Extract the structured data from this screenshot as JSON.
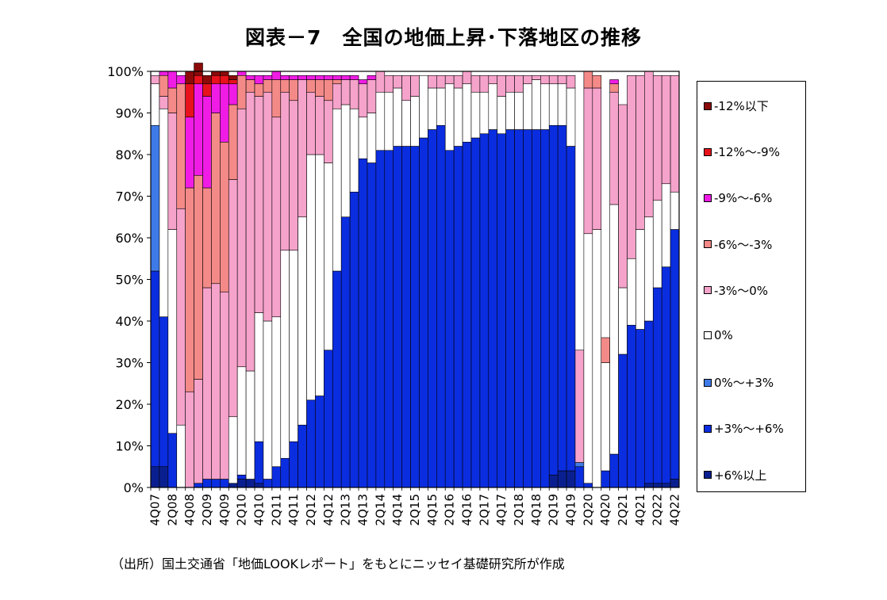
{
  "title": "図表－7　全国の地価上昇･下落地区の推移",
  "source_note": "（出所）国土交通省「地価LOOKレポート」をもとにニッセイ基礎研究所が作成",
  "chart_data": {
    "type": "stacked-bar",
    "y_axis": {
      "min": 0,
      "max": 100,
      "step": 10,
      "unit": "%",
      "tick_labels": [
        "0%",
        "10%",
        "20%",
        "30%",
        "40%",
        "50%",
        "60%",
        "70%",
        "80%",
        "90%",
        "100%"
      ]
    },
    "categories": [
      "4Q07",
      "1Q08",
      "2Q08",
      "3Q08",
      "4Q08",
      "1Q09",
      "2Q09",
      "3Q09",
      "4Q09",
      "1Q10",
      "2Q10",
      "3Q10",
      "4Q10",
      "1Q11",
      "2Q11",
      "3Q11",
      "4Q11",
      "1Q12",
      "2Q12",
      "3Q12",
      "4Q12",
      "1Q13",
      "2Q13",
      "3Q13",
      "4Q13",
      "1Q14",
      "2Q14",
      "3Q14",
      "4Q14",
      "1Q15",
      "2Q15",
      "3Q15",
      "4Q15",
      "1Q16",
      "2Q16",
      "3Q16",
      "4Q16",
      "1Q17",
      "2Q17",
      "3Q17",
      "4Q17",
      "1Q18",
      "2Q18",
      "3Q18",
      "4Q18",
      "1Q19",
      "2Q19",
      "3Q19",
      "4Q19",
      "1Q20",
      "2Q20",
      "3Q20",
      "4Q20",
      "1Q21",
      "2Q21",
      "3Q21",
      "4Q21",
      "1Q22",
      "2Q22",
      "3Q22",
      "4Q22"
    ],
    "x_tick_labels": [
      "4Q07",
      "2Q08",
      "4Q08",
      "2Q09",
      "4Q09",
      "2Q10",
      "4Q10",
      "2Q11",
      "4Q11",
      "2Q12",
      "4Q12",
      "2Q13",
      "4Q13",
      "2Q14",
      "4Q14",
      "2Q15",
      "4Q15",
      "2Q16",
      "4Q16",
      "2Q17",
      "4Q17",
      "2Q18",
      "4Q18",
      "2Q19",
      "4Q19",
      "2Q20",
      "4Q20",
      "2Q21",
      "4Q21",
      "2Q22",
      "4Q22"
    ],
    "series": [
      {
        "name": "+6%以上",
        "color": "#0A1F8F",
        "values": [
          5,
          5,
          0,
          0,
          0,
          0,
          0,
          0,
          0,
          1,
          2,
          2,
          1,
          0,
          0,
          0,
          0,
          0,
          0,
          0,
          0,
          0,
          0,
          0,
          0,
          0,
          0,
          0,
          0,
          0,
          0,
          0,
          0,
          0,
          0,
          0,
          0,
          0,
          0,
          0,
          0,
          0,
          0,
          0,
          0,
          0,
          3,
          4,
          4,
          0,
          0,
          0,
          0,
          0,
          0,
          0,
          0,
          1,
          1,
          1,
          2
        ]
      },
      {
        "name": "+3%～+6%",
        "color": "#0B2DE0",
        "values": [
          47,
          36,
          13,
          0,
          0,
          1,
          2,
          2,
          2,
          0,
          1,
          0,
          10,
          2,
          5,
          7,
          11,
          15,
          21,
          22,
          33,
          52,
          65,
          71,
          79,
          78,
          81,
          81,
          82,
          82,
          82,
          84,
          86,
          87,
          81,
          82,
          83,
          84,
          85,
          86,
          85,
          86,
          86,
          86,
          86,
          86,
          84,
          83,
          78,
          5,
          1,
          0,
          4,
          8,
          32,
          39,
          38,
          39,
          47,
          52,
          60
        ]
      },
      {
        "name": "0%～+3%",
        "color": "#3F7BE8",
        "values": [
          35,
          0,
          0,
          0,
          0,
          0,
          0,
          0,
          0,
          0,
          0,
          0,
          0,
          0,
          0,
          0,
          0,
          0,
          0,
          0,
          0,
          0,
          0,
          0,
          0,
          0,
          0,
          0,
          0,
          0,
          0,
          0,
          0,
          0,
          0,
          0,
          0,
          0,
          0,
          0,
          0,
          0,
          0,
          0,
          0,
          0,
          0,
          0,
          0,
          1,
          0,
          0,
          0,
          0,
          0,
          0,
          0,
          0,
          0,
          0,
          0
        ]
      },
      {
        "name": "0%",
        "color": "#FFFFFF",
        "values": [
          10,
          50,
          49,
          15,
          0,
          0,
          0,
          0,
          0,
          16,
          26,
          26,
          31,
          38,
          36,
          50,
          46,
          50,
          59,
          58,
          45,
          39,
          27,
          20,
          10,
          12,
          14,
          14,
          14,
          11,
          12,
          15,
          10,
          9,
          16,
          14,
          14,
          11,
          10,
          11,
          9,
          9,
          9,
          11,
          12,
          11,
          10,
          10,
          14,
          0,
          60,
          62,
          26,
          60,
          16,
          16,
          24,
          25,
          21,
          20,
          9
        ]
      },
      {
        "name": "-3%～0%",
        "color": "#F6A3CB",
        "values": [
          2,
          3,
          28,
          52,
          23,
          25,
          46,
          47,
          45,
          57,
          62,
          67,
          52,
          55,
          48,
          38,
          36,
          33,
          15,
          14,
          15,
          6,
          6,
          7,
          8,
          8,
          5,
          4,
          3,
          6,
          5,
          0,
          3,
          3,
          2,
          3,
          3,
          4,
          4,
          2,
          5,
          4,
          4,
          2,
          1,
          2,
          2,
          2,
          3,
          27,
          35,
          34,
          0,
          27,
          44,
          44,
          37,
          35,
          30,
          26,
          28
        ]
      },
      {
        "name": "-6%～-3%",
        "color": "#F48A88",
        "values": [
          0,
          5,
          6,
          30,
          49,
          49,
          24,
          41,
          36,
          18,
          8,
          3,
          3,
          3,
          9,
          3,
          5,
          0,
          3,
          4,
          5,
          1,
          0,
          0,
          0,
          0,
          0,
          0,
          0,
          0,
          0,
          0,
          0,
          0,
          0,
          0,
          0,
          0,
          0,
          0,
          0,
          0,
          0,
          0,
          0,
          0,
          0,
          0,
          0,
          0,
          4,
          3,
          6,
          2,
          0,
          0,
          0,
          0,
          0,
          0,
          0
        ]
      },
      {
        "name": "-9%～-6%",
        "color": "#F01CE5",
        "values": [
          0,
          1,
          4,
          2,
          17,
          22,
          22,
          7,
          14,
          5,
          1,
          1,
          2,
          1,
          2,
          1,
          1,
          1,
          1,
          1,
          1,
          1,
          1,
          1,
          1,
          1,
          0,
          0,
          0,
          0,
          0,
          0,
          0,
          0,
          0,
          0,
          0,
          0,
          0,
          0,
          0,
          0,
          0,
          0,
          0,
          0,
          0,
          0,
          0,
          0,
          0,
          0,
          0,
          1,
          0,
          0,
          0,
          0,
          0,
          0,
          0
        ]
      },
      {
        "name": "-12%～-9%",
        "color": "#E8121C",
        "values": [
          0,
          0,
          0,
          0,
          8,
          2,
          3,
          2,
          2,
          1,
          0,
          0,
          0,
          0,
          0,
          0,
          0,
          0,
          0,
          0,
          0,
          0,
          0,
          0,
          0,
          0,
          0,
          0,
          0,
          0,
          0,
          0,
          0,
          0,
          0,
          0,
          0,
          0,
          0,
          0,
          0,
          0,
          0,
          0,
          0,
          0,
          0,
          0,
          0,
          0,
          0,
          0,
          0,
          0,
          0,
          0,
          0,
          0,
          0,
          0,
          0
        ]
      },
      {
        "name": "-12%以下",
        "color": "#8B0A0A",
        "values": [
          0,
          0,
          0,
          0,
          3,
          3,
          2,
          1,
          1,
          1,
          0,
          0,
          0,
          0,
          0,
          0,
          0,
          0,
          0,
          0,
          0,
          0,
          0,
          0,
          0,
          0,
          0,
          0,
          0,
          0,
          0,
          0,
          0,
          0,
          0,
          0,
          0,
          0,
          0,
          0,
          0,
          0,
          0,
          0,
          0,
          0,
          0,
          0,
          0,
          0,
          0,
          0,
          0,
          0,
          0,
          0,
          0,
          0,
          0,
          0,
          0
        ]
      }
    ]
  }
}
